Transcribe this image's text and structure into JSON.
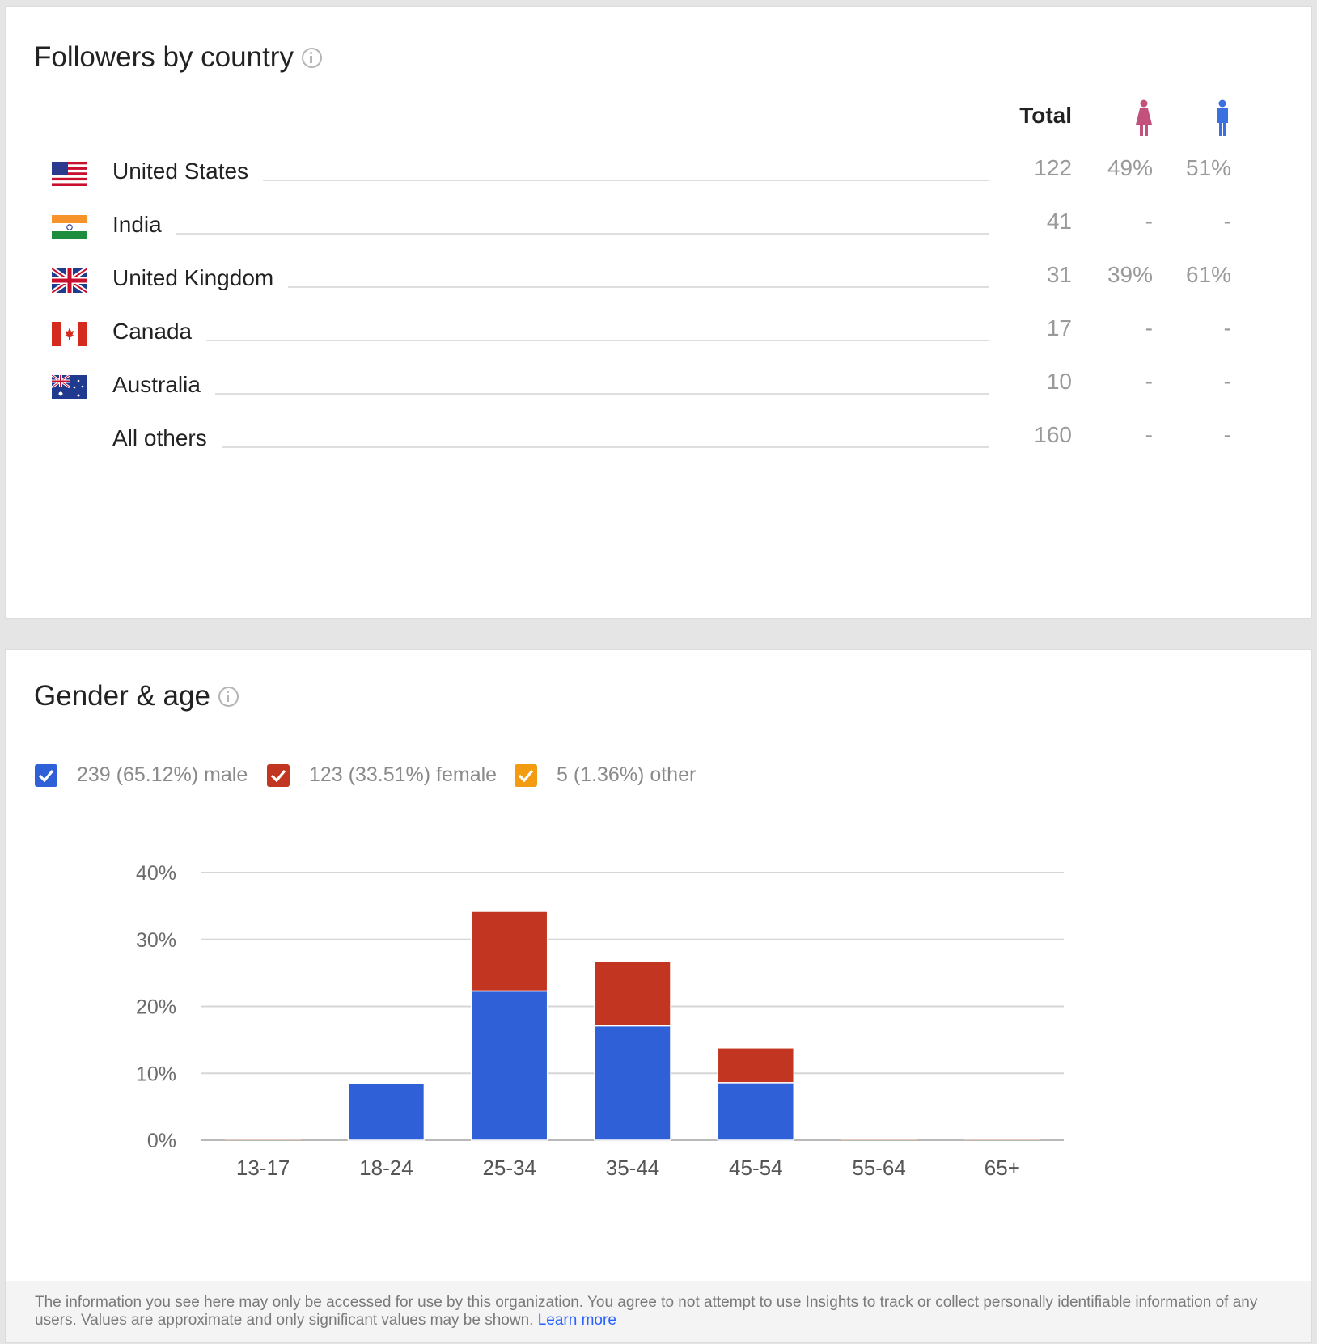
{
  "country_card": {
    "title": "Followers by country",
    "columns": {
      "total": "Total",
      "female_icon": "female-person-icon",
      "male_icon": "male-person-icon"
    },
    "rows": [
      {
        "country": "United States",
        "flag": "us-flag-icon",
        "total": "122",
        "female": "49%",
        "male": "51%"
      },
      {
        "country": "India",
        "flag": "india-flag-icon",
        "total": "41",
        "female": "-",
        "male": "-"
      },
      {
        "country": "United Kingdom",
        "flag": "uk-flag-icon",
        "total": "31",
        "female": "39%",
        "male": "61%"
      },
      {
        "country": "Canada",
        "flag": "canada-flag-icon",
        "total": "17",
        "female": "-",
        "male": "-"
      },
      {
        "country": "Australia",
        "flag": "australia-flag-icon",
        "total": "10",
        "female": "-",
        "male": "-"
      },
      {
        "country": "All others",
        "flag": "",
        "total": "160",
        "female": "-",
        "male": "-"
      }
    ],
    "colors": {
      "female": "#c2527c",
      "male": "#3a70e0"
    }
  },
  "gender_card": {
    "title": "Gender & age",
    "legend": [
      {
        "label": "239 (65.12%) male",
        "color": "#3060d8",
        "checked": true
      },
      {
        "label": "123 (33.51%) female",
        "color": "#c23621",
        "checked": true
      },
      {
        "label": "5 (1.36%) other",
        "color": "#f39c12",
        "checked": true
      }
    ]
  },
  "chart_data": {
    "type": "bar",
    "stacked": true,
    "categories": [
      "13-17",
      "18-24",
      "25-34",
      "35-44",
      "45-54",
      "55-64",
      "65+"
    ],
    "series": [
      {
        "name": "male",
        "color": "#3060d8",
        "values": [
          0,
          8.5,
          22.3,
          17.1,
          8.6,
          0,
          0
        ]
      },
      {
        "name": "female",
        "color": "#c23621",
        "values": [
          0,
          0,
          11.9,
          9.7,
          5.2,
          0,
          0
        ]
      },
      {
        "name": "other",
        "color": "#f39c12",
        "values": [
          0,
          0,
          0,
          0,
          0,
          0,
          0
        ]
      }
    ],
    "ylim": [
      0,
      40
    ],
    "yticks": [
      "0%",
      "10%",
      "20%",
      "30%",
      "40%"
    ],
    "grid": true
  },
  "footer": {
    "text": "The information you see here may only be accessed for use by this organization. You agree to not attempt to use Insights to track or collect personally identifiable information of any users. Values are approximate and only significant values may be shown.",
    "link": "Learn more"
  }
}
